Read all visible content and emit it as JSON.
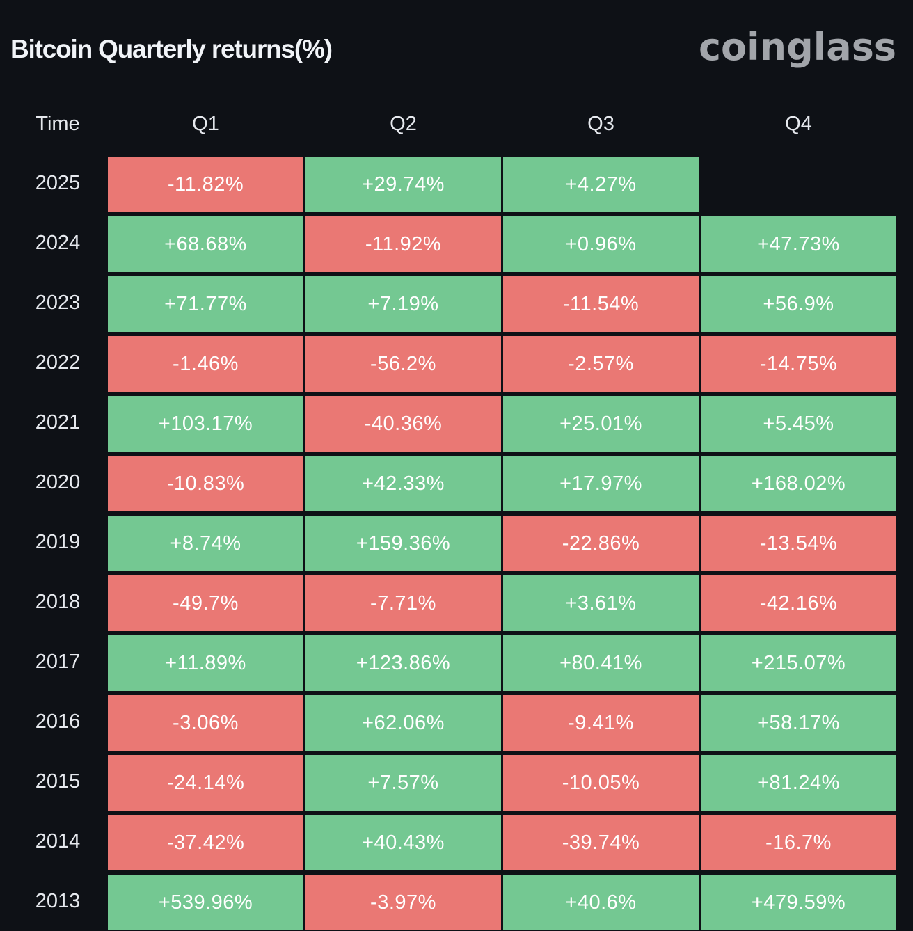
{
  "title": "Bitcoin Quarterly returns(%)",
  "logo": "coinglass",
  "colors": {
    "positive": "#74c892",
    "negative": "#ea7874",
    "background": "#0e1116"
  },
  "chart_data": {
    "type": "heatmap",
    "title": "Bitcoin Quarterly returns(%)",
    "row_header": "Time",
    "columns": [
      "Q1",
      "Q2",
      "Q3",
      "Q4"
    ],
    "rows": [
      {
        "year": "2025",
        "values": [
          "-11.82%",
          "+29.74%",
          "+4.27%",
          null
        ]
      },
      {
        "year": "2024",
        "values": [
          "+68.68%",
          "-11.92%",
          "+0.96%",
          "+47.73%"
        ]
      },
      {
        "year": "2023",
        "values": [
          "+71.77%",
          "+7.19%",
          "-11.54%",
          "+56.9%"
        ]
      },
      {
        "year": "2022",
        "values": [
          "-1.46%",
          "-56.2%",
          "-2.57%",
          "-14.75%"
        ]
      },
      {
        "year": "2021",
        "values": [
          "+103.17%",
          "-40.36%",
          "+25.01%",
          "+5.45%"
        ]
      },
      {
        "year": "2020",
        "values": [
          "-10.83%",
          "+42.33%",
          "+17.97%",
          "+168.02%"
        ]
      },
      {
        "year": "2019",
        "values": [
          "+8.74%",
          "+159.36%",
          "-22.86%",
          "-13.54%"
        ]
      },
      {
        "year": "2018",
        "values": [
          "-49.7%",
          "-7.71%",
          "+3.61%",
          "-42.16%"
        ]
      },
      {
        "year": "2017",
        "values": [
          "+11.89%",
          "+123.86%",
          "+80.41%",
          "+215.07%"
        ]
      },
      {
        "year": "2016",
        "values": [
          "-3.06%",
          "+62.06%",
          "-9.41%",
          "+58.17%"
        ]
      },
      {
        "year": "2015",
        "values": [
          "-24.14%",
          "+7.57%",
          "-10.05%",
          "+81.24%"
        ]
      },
      {
        "year": "2014",
        "values": [
          "-37.42%",
          "+40.43%",
          "-39.74%",
          "-16.7%"
        ]
      },
      {
        "year": "2013",
        "values": [
          "+539.96%",
          "-3.97%",
          "+40.6%",
          "+479.59%"
        ]
      }
    ]
  }
}
